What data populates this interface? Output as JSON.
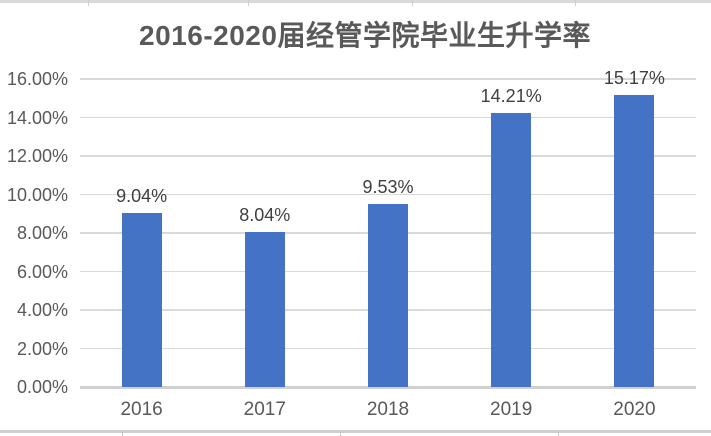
{
  "chart_data": {
    "type": "bar",
    "title": "2016-2020届经管学院毕业生升学率",
    "categories": [
      "2016",
      "2017",
      "2018",
      "2019",
      "2020"
    ],
    "values": [
      9.04,
      8.04,
      9.53,
      14.21,
      15.17
    ],
    "data_labels": [
      "9.04%",
      "8.04%",
      "9.53%",
      "14.21%",
      "15.17%"
    ],
    "xlabel": "",
    "ylabel": "",
    "ylim": [
      0,
      16
    ],
    "y_tick_values": [
      0,
      2,
      4,
      6,
      8,
      10,
      12,
      14,
      16
    ],
    "y_tick_labels": [
      "0.00%",
      "2.00%",
      "4.00%",
      "6.00%",
      "8.00%",
      "10.00%",
      "12.00%",
      "14.00%",
      "16.00%"
    ],
    "grid": "horizontal",
    "legend": "none",
    "colors": {
      "bar": "#4472C4",
      "gridline": "#D9D9D9",
      "axis_line": "#D0D0D0",
      "title_text": "#595959",
      "tick_text": "#595959",
      "data_label_text": "#404040",
      "background": "#FFFFFF"
    }
  }
}
